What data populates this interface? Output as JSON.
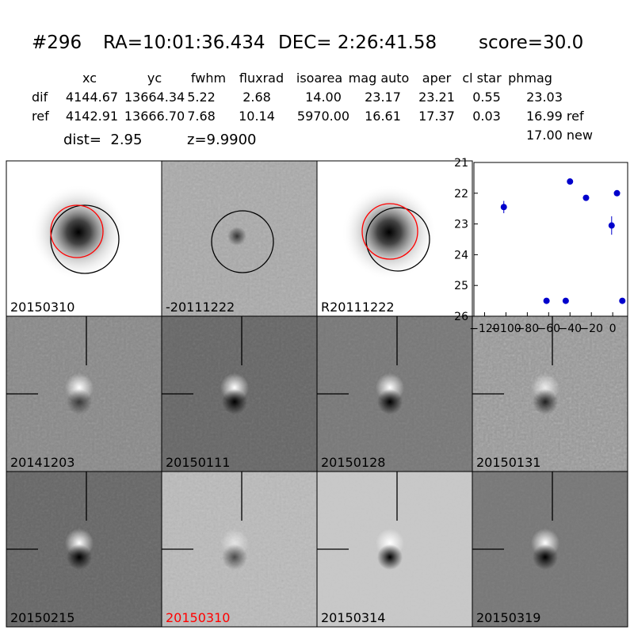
{
  "header": {
    "id": "#296",
    "ra": "RA=10:01:36.434",
    "dec": "DEC= 2:26:41.58",
    "score": "score=30.0"
  },
  "table": {
    "columns": [
      "xc",
      "yc",
      "fwhm",
      "fluxrad",
      "isoarea",
      "mag auto",
      "aper",
      "cl star",
      "phmag"
    ],
    "rows": [
      [
        "dif",
        "4144.67",
        "13664.34",
        "5.22",
        "2.68",
        "14.00",
        "23.17",
        "23.21",
        "0.55",
        "23.03"
      ],
      [
        "ref",
        "4142.91",
        "13666.70",
        "7.68",
        "10.14",
        "5970.00",
        "16.61",
        "17.37",
        "0.03",
        "16.99 ref"
      ]
    ],
    "extra": "17.00 new"
  },
  "summary": {
    "dist": "dist=  2.95",
    "z": "z=9.9900"
  },
  "panels": [
    {
      "label": "20150310"
    },
    {
      "label": "-20111222"
    },
    {
      "label": "R20111222"
    },
    {
      "label": "20141203"
    },
    {
      "label": "20150111"
    },
    {
      "label": "20150128"
    },
    {
      "label": "20150131"
    },
    {
      "label": "20150215"
    },
    {
      "label": "20150310",
      "label_color": "#ff0000"
    },
    {
      "label": "20150314"
    },
    {
      "label": "20150319"
    }
  ],
  "chart_data": {
    "type": "scatter",
    "color": "#0000cc",
    "x": [
      -102,
      -62,
      -44,
      -40,
      -25,
      -1,
      4,
      9
    ],
    "values": [
      22.45,
      25.5,
      25.5,
      21.62,
      22.15,
      23.05,
      22.0,
      25.5
    ],
    "errors": [
      0.2,
      0.05,
      0.05,
      0.05,
      0.05,
      0.3,
      0.05,
      0.05
    ],
    "xlim": [
      -130,
      14
    ],
    "ylim": [
      26,
      21
    ],
    "inverted_y": true,
    "xticks": [
      {
        "value": -120,
        "label": "−120"
      },
      {
        "value": -100,
        "label": "−100"
      },
      {
        "value": -80,
        "label": "−80"
      },
      {
        "value": -60,
        "label": "−60"
      },
      {
        "value": -40,
        "label": "−40"
      },
      {
        "value": -20,
        "label": "−20"
      },
      0
    ],
    "yticks": [
      21,
      22,
      23,
      24,
      25,
      26
    ]
  }
}
